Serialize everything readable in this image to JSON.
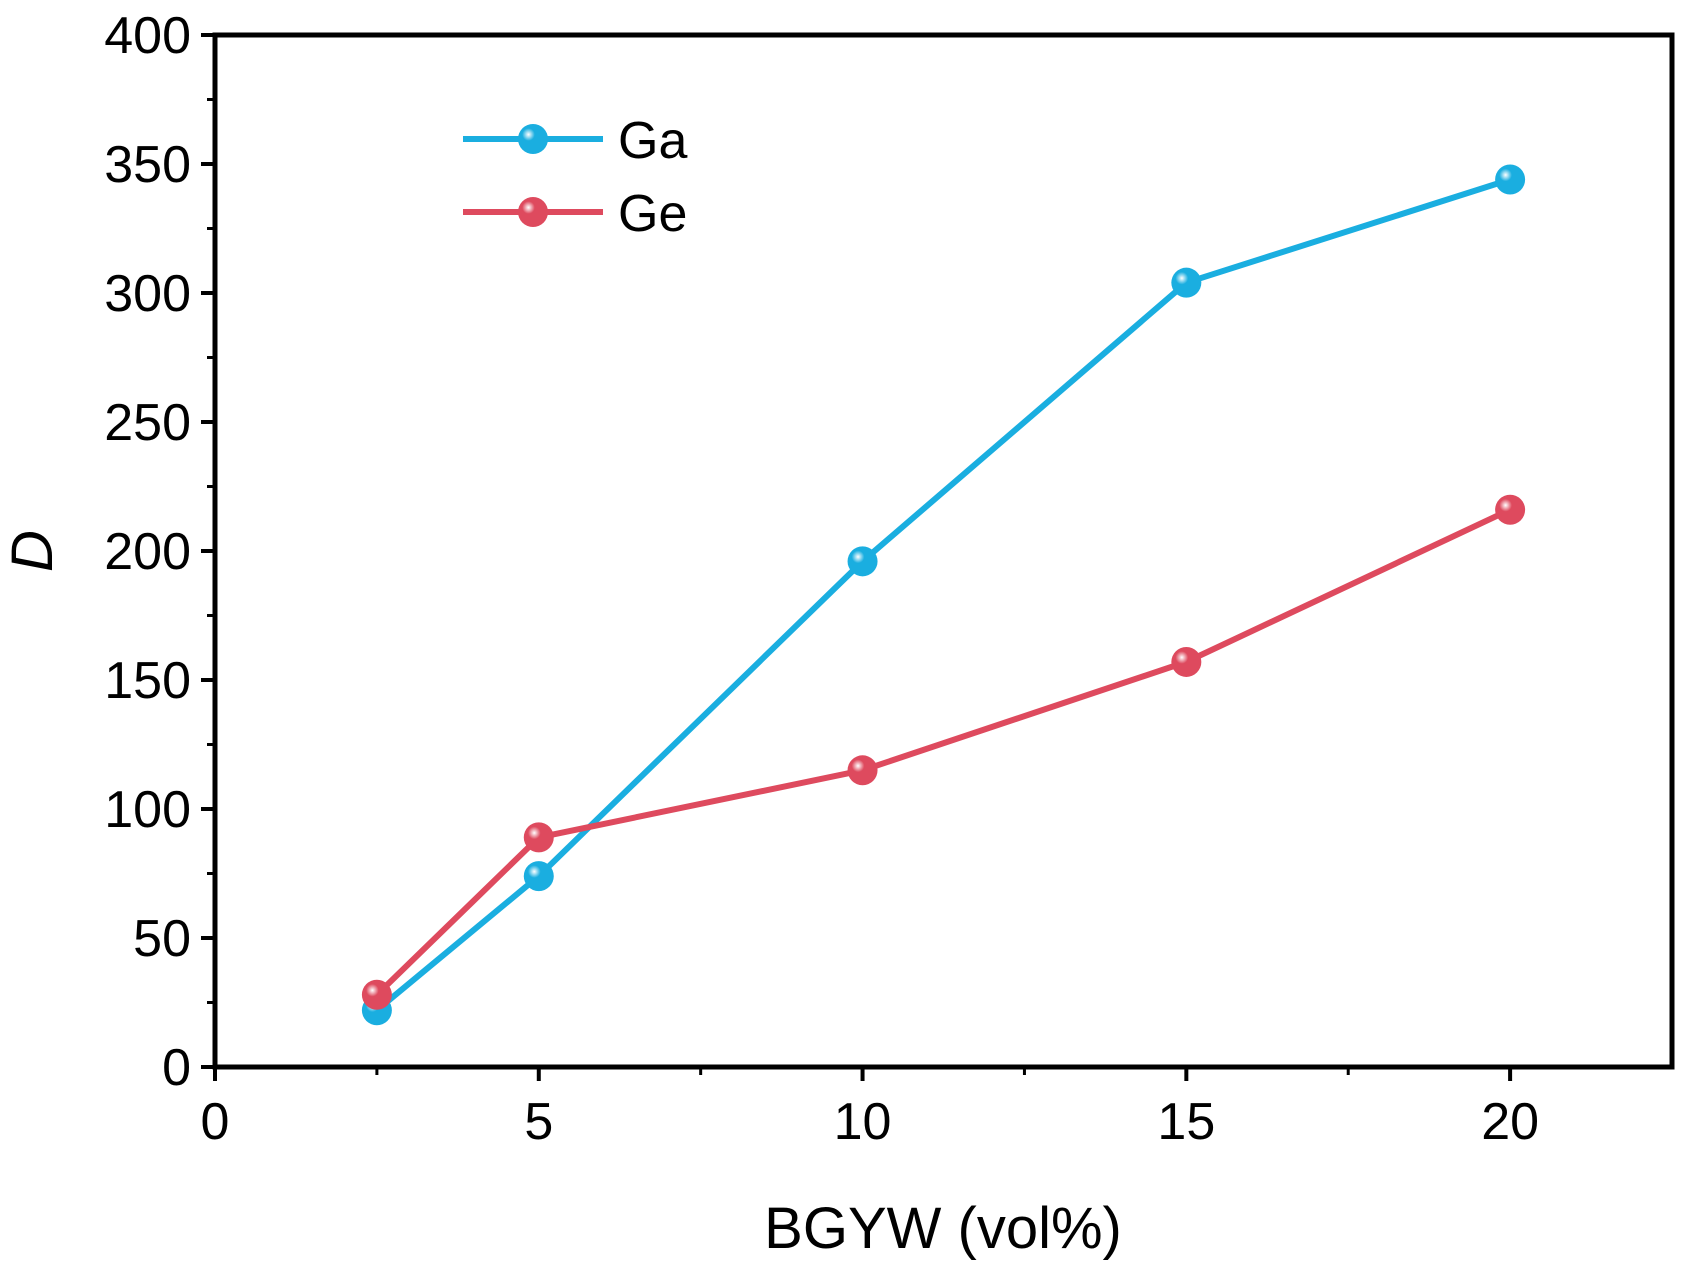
{
  "chart_data": {
    "type": "line",
    "title": "",
    "xlabel": "BGYW (vol%)",
    "ylabel": "D",
    "xlim": [
      0,
      22.5
    ],
    "ylim": [
      0,
      400
    ],
    "x_ticks": [
      0,
      5,
      10,
      15,
      20
    ],
    "y_ticks": [
      0,
      50,
      100,
      150,
      200,
      250,
      300,
      350,
      400
    ],
    "legend_position": "top-left",
    "grid": false,
    "series": [
      {
        "name": "Ga",
        "color": "#1aaee0",
        "x": [
          2.5,
          5,
          10,
          15,
          20
        ],
        "y": [
          22,
          74,
          196,
          304,
          344
        ]
      },
      {
        "name": "Ge",
        "color": "#de4a5e",
        "x": [
          2.5,
          5,
          10,
          15,
          20
        ],
        "y": [
          28,
          89,
          115,
          157,
          216
        ]
      }
    ]
  }
}
